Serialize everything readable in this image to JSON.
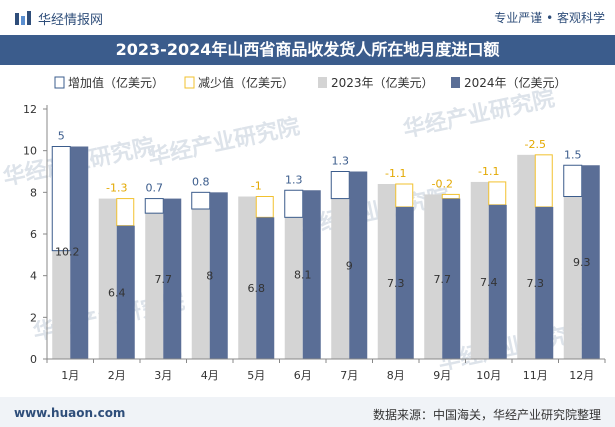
{
  "header": {
    "brand": "华经情报网",
    "tagline": "专业严谨 • 客观科学",
    "title": "2023-2024年山西省商品收发货人所在地月度进口额"
  },
  "footer": {
    "url": "www.huaon.com",
    "source": "数据来源：中国海关，华经产业研究院整理"
  },
  "watermark": "华经产业研究院",
  "colors": {
    "bar2023": "#d4d4d4",
    "bar2024": "#5a6e96",
    "increase": "#3b5c8c",
    "decrease": "#f2c12e",
    "header": "#3b5c8c"
  },
  "chart_data": {
    "type": "bar",
    "categories": [
      "1月",
      "2月",
      "3月",
      "4月",
      "5月",
      "6月",
      "7月",
      "8月",
      "9月",
      "10月",
      "11月",
      "12月"
    ],
    "series": [
      {
        "name": "2023年（亿美元）",
        "values": [
          5.2,
          7.7,
          7.0,
          7.2,
          7.8,
          6.8,
          7.7,
          8.4,
          7.9,
          8.5,
          9.8,
          7.8
        ]
      },
      {
        "name": "2024年（亿美元）",
        "values": [
          10.2,
          6.4,
          7.7,
          8.0,
          6.8,
          8.1,
          9.0,
          7.3,
          7.7,
          7.4,
          7.3,
          9.3
        ]
      }
    ],
    "change": {
      "increase_name": "增加值（亿美元）",
      "decrease_name": "减少值（亿美元）",
      "labels": [
        "5",
        "-1.3",
        "0.7",
        "0.8",
        "-1",
        "1.3",
        "1.3",
        "-1.1",
        "-0.2",
        "-1.1",
        "-2.5",
        "1.5"
      ],
      "values": [
        5,
        -1.3,
        0.7,
        0.8,
        -1,
        1.3,
        1.3,
        -1.1,
        -0.2,
        -1.1,
        -2.5,
        1.5
      ]
    },
    "value_labels_2024": [
      "10.2",
      "6.4",
      "7.7",
      "8",
      "6.8",
      "8.1",
      "9",
      "7.3",
      "7.7",
      "7.4",
      "7.3",
      "9.3"
    ],
    "yticks": [
      "0",
      "2",
      "4",
      "6",
      "8",
      "10",
      "12"
    ],
    "ylim": [
      0,
      12
    ],
    "legend_position": "top"
  }
}
